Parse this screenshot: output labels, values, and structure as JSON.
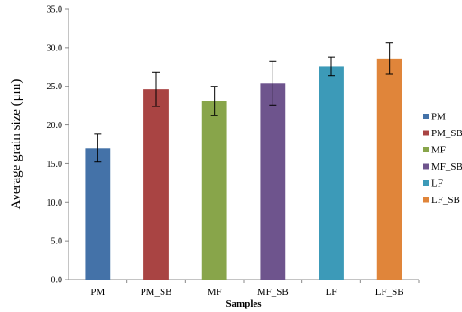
{
  "chart_data": {
    "type": "bar",
    "title": "",
    "xlabel": "Samples",
    "ylabel": "Average grain size (μm)",
    "ylim": [
      0,
      35
    ],
    "yticks": [
      "0.0",
      "5.0",
      "10.0",
      "15.0",
      "20.0",
      "25.0",
      "30.0",
      "35.0"
    ],
    "ytick_values": [
      0,
      5,
      10,
      15,
      20,
      25,
      30,
      35
    ],
    "grid": false,
    "legend_position": "right",
    "categories": [
      "PM",
      "PM_SB",
      "MF",
      "MF_SB",
      "LF",
      "LF_SB"
    ],
    "values": [
      17.0,
      24.6,
      23.1,
      25.4,
      27.6,
      28.6
    ],
    "errors": [
      1.8,
      2.2,
      1.9,
      2.8,
      1.2,
      2.0
    ],
    "colors": [
      "#4472a8",
      "#a94443",
      "#88a54a",
      "#6e548d",
      "#3c9ab8",
      "#e0853a"
    ]
  }
}
